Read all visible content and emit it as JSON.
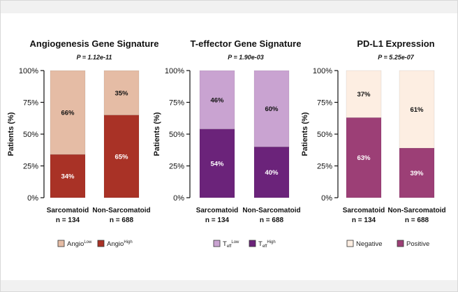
{
  "chart_data": [
    {
      "type": "bar",
      "stacked": true,
      "title": "Angiogenesis Gene Signature",
      "p_label": "P",
      "p_value": "= 1.12e-11",
      "ylabel": "Patients (%)",
      "ylim": [
        0,
        100
      ],
      "yticks": [
        "0%",
        "25%",
        "50%",
        "75%",
        "100%"
      ],
      "categories": [
        "Sarcomatoid",
        "Non-Sarcomatoid"
      ],
      "n_labels": [
        "n = 134",
        "n = 688"
      ],
      "series": [
        {
          "name": "Angio",
          "name_sup": "High",
          "values": [
            34,
            65
          ],
          "labels": [
            "34%",
            "65%"
          ],
          "color": "#a93226",
          "label_color": "#ffffff"
        },
        {
          "name": "Angio",
          "name_sup": "Low",
          "values": [
            66,
            35
          ],
          "labels": [
            "66%",
            "35%"
          ],
          "color": "#e5bca5",
          "label_color": "#111111"
        }
      ],
      "legend_order": [
        1,
        0
      ]
    },
    {
      "type": "bar",
      "stacked": true,
      "title": "T-effector Gene Signature",
      "p_label": "P",
      "p_value": "= 1.90e-03",
      "ylabel": "Patients (%)",
      "ylim": [
        0,
        100
      ],
      "yticks": [
        "0%",
        "25%",
        "50%",
        "75%",
        "100%"
      ],
      "categories": [
        "Sarcomatoid",
        "Non-Sarcomatoid"
      ],
      "n_labels": [
        "n = 134",
        "n = 688"
      ],
      "series": [
        {
          "name": "T",
          "name_sub": "eff",
          "name_sup": "High",
          "values": [
            54,
            40
          ],
          "labels": [
            "54%",
            "40%"
          ],
          "color": "#6b237a",
          "label_color": "#ffffff"
        },
        {
          "name": "T",
          "name_sub": "eff",
          "name_sup": "Low",
          "values": [
            46,
            60
          ],
          "labels": [
            "46%",
            "60%"
          ],
          "color": "#c9a3d1",
          "label_color": "#111111"
        }
      ],
      "legend_order": [
        1,
        0
      ]
    },
    {
      "type": "bar",
      "stacked": true,
      "title": "PD-L1 Expression",
      "p_label": "P",
      "p_value": "= 5.25e-07",
      "ylabel": "Patients (%)",
      "ylim": [
        0,
        100
      ],
      "yticks": [
        "0%",
        "25%",
        "50%",
        "75%",
        "100%"
      ],
      "categories": [
        "Sarcomatoid",
        "Non-Sarcomatoid"
      ],
      "n_labels": [
        "n = 134",
        "n = 688"
      ],
      "series": [
        {
          "name": "Positive",
          "values": [
            63,
            39
          ],
          "labels": [
            "63%",
            "39%"
          ],
          "color": "#9c3f76",
          "label_color": "#ffffff"
        },
        {
          "name": "Negative",
          "values": [
            37,
            61
          ],
          "labels": [
            "37%",
            "61%"
          ],
          "color": "#fdeee2",
          "label_color": "#111111"
        }
      ],
      "legend_order": [
        1,
        0
      ]
    }
  ]
}
